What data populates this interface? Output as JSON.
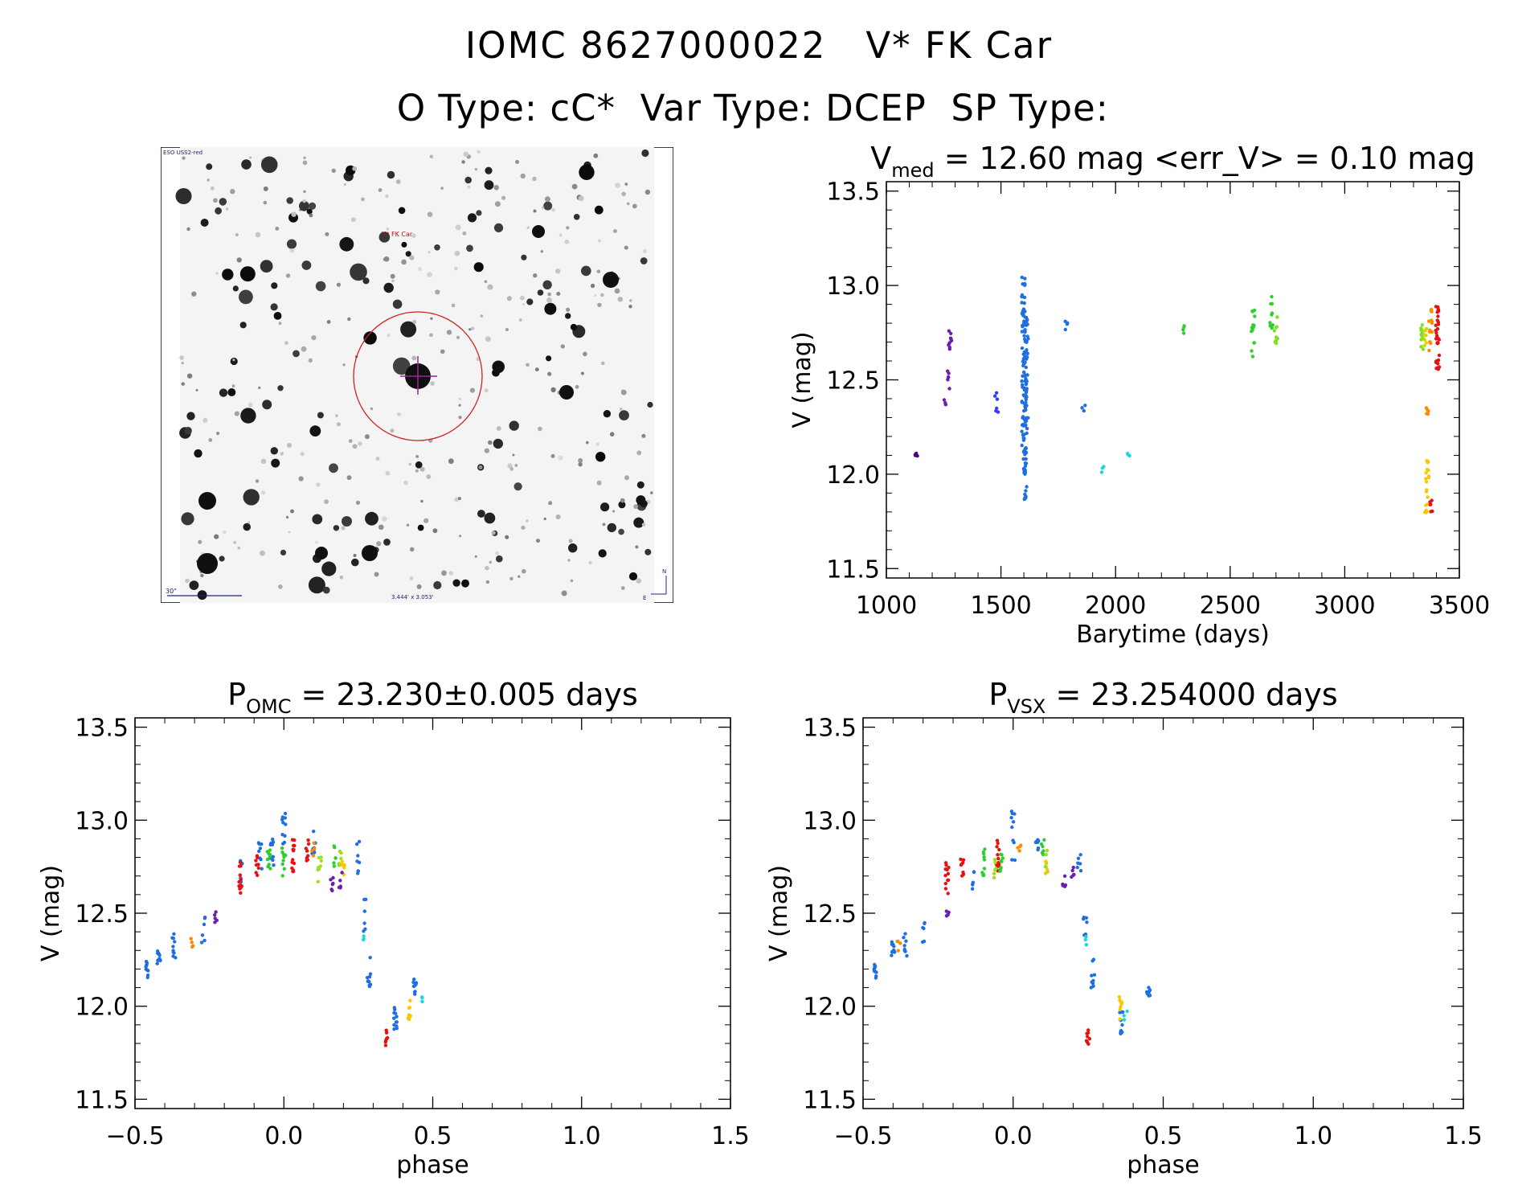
{
  "header": {
    "line1": "IOMC 8627000022   V* FK Car",
    "line2": "O Type: cC*  Var Type: DCEP  SP Type: "
  },
  "finder": {
    "survey_label": "ESO USS2-red",
    "target_label": "V* FK Car",
    "scale_label": "30\"",
    "field_label": "3.444' x 3.053'",
    "north_label": "N",
    "east_label": "E",
    "colors": {
      "circle": "#cc2222",
      "cross": "#a020a0",
      "annotation": "#1a237e",
      "target_text": "#b01010"
    }
  },
  "chart_data": [
    {
      "id": "lightcurve",
      "type": "scatter",
      "title_main": "V",
      "title_sub": "med",
      "title_rest": " = 12.60 mag <err_V> = 0.10 mag",
      "xlabel": "Barytime (days)",
      "ylabel": "V (mag)",
      "xlim": [
        1000,
        3500
      ],
      "ylim": [
        13.55,
        11.45
      ],
      "xticks": [
        1000,
        1500,
        2000,
        2500,
        3000,
        3500
      ],
      "xtick_labels": [
        "1000",
        "1500",
        "2000",
        "2500",
        "3000",
        "3500"
      ],
      "yticks": [
        11.5,
        12.0,
        12.5,
        13.0,
        13.5
      ],
      "ytick_labels": [
        "11.5",
        "12.0",
        "12.5",
        "13.0",
        "13.5"
      ],
      "series": [
        {
          "name": "s1",
          "color": "#4b0082",
          "clumps": [
            [
              1130,
              12.08,
              12.12,
              4
            ]
          ]
        },
        {
          "name": "s2",
          "color": "#6a1fb0",
          "clumps": [
            [
              1255,
              12.36,
              12.4,
              3
            ],
            [
              1272,
              12.44,
              12.55,
              6
            ],
            [
              1278,
              12.62,
              12.78,
              10
            ]
          ]
        },
        {
          "name": "s3",
          "color": "#3a3aff",
          "clumps": [
            [
              1480,
              12.32,
              12.44,
              6
            ]
          ]
        },
        {
          "name": "s4",
          "color": "#1f6fe0",
          "clumps": [
            [
              1598,
              12.15,
              13.05,
              60
            ],
            [
              1605,
              11.85,
              12.85,
              60
            ],
            [
              1612,
              12.2,
              12.85,
              30
            ],
            [
              1785,
              12.75,
              12.82,
              4
            ],
            [
              1860,
              12.32,
              12.38,
              3
            ]
          ]
        },
        {
          "name": "s5",
          "color": "#19d8d8",
          "clumps": [
            [
              1945,
              12.01,
              12.05,
              3
            ],
            [
              2060,
              12.07,
              12.11,
              3
            ]
          ]
        },
        {
          "name": "s6",
          "color": "#2fce2f",
          "clumps": [
            [
              2300,
              12.74,
              12.8,
              4
            ],
            [
              2600,
              12.62,
              12.9,
              14
            ],
            [
              2680,
              12.72,
              12.95,
              10
            ]
          ]
        },
        {
          "name": "s7",
          "color": "#7ee020",
          "clumps": [
            [
              2700,
              12.68,
              12.86,
              10
            ],
            [
              3340,
              12.65,
              12.8,
              12
            ]
          ]
        },
        {
          "name": "s8",
          "color": "#d8d800",
          "clumps": [
            [
              3350,
              12.68,
              12.78,
              8
            ]
          ]
        },
        {
          "name": "s9",
          "color": "#f5c800",
          "clumps": [
            [
              3355,
              11.78,
              11.88,
              8
            ],
            [
              3360,
              11.9,
              12.08,
              12
            ]
          ]
        },
        {
          "name": "s10",
          "color": "#ff8c00",
          "clumps": [
            [
              3362,
              12.28,
              12.38,
              6
            ],
            [
              3375,
              12.65,
              12.88,
              14
            ]
          ]
        },
        {
          "name": "s11",
          "color": "#e81010",
          "clumps": [
            [
              3378,
              11.78,
              11.88,
              6
            ],
            [
              3405,
              12.55,
              12.92,
              30
            ]
          ]
        }
      ]
    },
    {
      "id": "phase_omc",
      "type": "scatter",
      "title_main": "P",
      "title_sub": "OMC",
      "title_rest": " = 23.230±0.005 days",
      "xlabel": "phase",
      "ylabel": "V (mag)",
      "xlim": [
        -0.5,
        1.5
      ],
      "ylim": [
        13.55,
        11.45
      ],
      "xticks": [
        -0.5,
        0.0,
        0.5,
        1.0,
        1.5
      ],
      "xtick_labels": [
        "−0.5",
        "0.0",
        "0.5",
        "1.0",
        "1.5"
      ],
      "yticks": [
        11.5,
        12.0,
        12.5,
        13.0,
        13.5
      ],
      "ytick_labels": [
        "11.5",
        "12.0",
        "12.5",
        "13.0",
        "13.5"
      ],
      "series": [
        {
          "name": "p-blue",
          "color": "#1f6fe0",
          "clumps": [
            [
              -0.46,
              12.14,
              12.26,
              10
            ],
            [
              -0.42,
              12.18,
              12.3,
              10
            ],
            [
              -0.37,
              12.25,
              12.4,
              10
            ],
            [
              -0.27,
              12.33,
              12.48,
              6
            ],
            [
              -0.14,
              12.65,
              12.8,
              6
            ],
            [
              -0.08,
              12.72,
              12.88,
              8
            ],
            [
              -0.04,
              12.7,
              12.95,
              10
            ],
            [
              0.0,
              12.75,
              13.05,
              10
            ],
            [
              0.1,
              12.82,
              12.97,
              8
            ],
            [
              0.25,
              12.7,
              12.92,
              8
            ],
            [
              0.27,
              12.4,
              12.62,
              6
            ],
            [
              0.285,
              12.1,
              12.3,
              10
            ],
            [
              0.375,
              11.85,
              12.0,
              12
            ],
            [
              0.44,
              12.05,
              12.15,
              10
            ]
          ]
        },
        {
          "name": "p-red",
          "color": "#e81010",
          "clumps": [
            [
              -0.145,
              12.6,
              12.8,
              12
            ],
            [
              -0.09,
              12.68,
              12.82,
              8
            ],
            [
              0.03,
              12.72,
              12.9,
              14
            ],
            [
              0.08,
              12.75,
              12.9,
              8
            ],
            [
              0.345,
              11.78,
              11.88,
              8
            ]
          ]
        },
        {
          "name": "p-green",
          "color": "#2fce2f",
          "clumps": [
            [
              -0.05,
              12.72,
              12.85,
              10
            ],
            [
              0.0,
              12.7,
              12.85,
              10
            ],
            [
              0.17,
              12.75,
              12.92,
              6
            ]
          ]
        },
        {
          "name": "p-lime",
          "color": "#9be020",
          "clumps": [
            [
              0.12,
              12.65,
              12.82,
              8
            ],
            [
              0.19,
              12.72,
              12.85,
              6
            ]
          ]
        },
        {
          "name": "p-orange",
          "color": "#ff8c00",
          "clumps": [
            [
              -0.31,
              12.3,
              12.38,
              4
            ],
            [
              0.1,
              12.8,
              12.88,
              4
            ]
          ]
        },
        {
          "name": "p-yellow",
          "color": "#f5c800",
          "clumps": [
            [
              0.42,
              11.92,
              12.05,
              8
            ],
            [
              0.2,
              12.7,
              12.8,
              6
            ]
          ]
        },
        {
          "name": "p-cyan",
          "color": "#19d8d8",
          "clumps": [
            [
              0.27,
              12.33,
              12.38,
              3
            ],
            [
              0.47,
              12.0,
              12.06,
              3
            ]
          ]
        },
        {
          "name": "p-purple",
          "color": "#6a1fb0",
          "clumps": [
            [
              -0.23,
              12.45,
              12.52,
              5
            ],
            [
              0.16,
              12.6,
              12.7,
              6
            ],
            [
              0.19,
              12.62,
              12.72,
              5
            ]
          ]
        }
      ]
    },
    {
      "id": "phase_vsx",
      "type": "scatter",
      "title_main": "P",
      "title_sub": "VSX",
      "title_rest": " = 23.254000 days",
      "xlabel": "phase",
      "ylabel": "V (mag)",
      "xlim": [
        -0.5,
        1.5
      ],
      "ylim": [
        13.55,
        11.45
      ],
      "xticks": [
        -0.5,
        0.0,
        0.5,
        1.0,
        1.5
      ],
      "xtick_labels": [
        "−0.5",
        "0.0",
        "0.5",
        "1.0",
        "1.5"
      ],
      "yticks": [
        11.5,
        12.0,
        12.5,
        13.0,
        13.5
      ],
      "ytick_labels": [
        "11.5",
        "12.0",
        "12.5",
        "13.0",
        "13.5"
      ],
      "series": [
        {
          "name": "v-blue",
          "color": "#1f6fe0",
          "clumps": [
            [
              -0.46,
              12.14,
              12.24,
              10
            ],
            [
              -0.4,
              12.22,
              12.35,
              10
            ],
            [
              -0.36,
              12.26,
              12.4,
              8
            ],
            [
              -0.3,
              12.33,
              12.45,
              6
            ],
            [
              -0.13,
              12.62,
              12.75,
              6
            ],
            [
              0.0,
              12.75,
              13.05,
              10
            ],
            [
              0.08,
              12.8,
              12.92,
              8
            ],
            [
              0.22,
              12.7,
              12.82,
              6
            ],
            [
              0.24,
              12.3,
              12.5,
              6
            ],
            [
              0.265,
              12.1,
              12.28,
              10
            ],
            [
              0.36,
              11.85,
              12.0,
              10
            ],
            [
              0.45,
              12.05,
              12.15,
              10
            ]
          ]
        },
        {
          "name": "v-red",
          "color": "#e81010",
          "clumps": [
            [
              -0.22,
              12.6,
              12.78,
              12
            ],
            [
              -0.17,
              12.68,
              12.82,
              8
            ],
            [
              -0.05,
              12.72,
              12.9,
              14
            ],
            [
              0.25,
              11.78,
              11.88,
              8
            ]
          ]
        },
        {
          "name": "v-green",
          "color": "#2fce2f",
          "clumps": [
            [
              -0.1,
              12.7,
              12.85,
              10
            ],
            [
              -0.04,
              12.7,
              12.82,
              8
            ],
            [
              0.1,
              12.78,
              12.92,
              6
            ]
          ]
        },
        {
          "name": "v-lime",
          "color": "#9be020",
          "clumps": [
            [
              -0.06,
              12.68,
              12.8,
              6
            ],
            [
              0.11,
              12.7,
              12.85,
              6
            ]
          ]
        },
        {
          "name": "v-orange",
          "color": "#ff8c00",
          "clumps": [
            [
              -0.38,
              12.28,
              12.36,
              4
            ],
            [
              0.02,
              12.82,
              12.88,
              4
            ]
          ]
        },
        {
          "name": "v-yellow",
          "color": "#f5c800",
          "clumps": [
            [
              0.36,
              11.93,
              12.05,
              8
            ],
            [
              0.11,
              12.7,
              12.82,
              5
            ]
          ]
        },
        {
          "name": "v-cyan",
          "color": "#19d8d8",
          "clumps": [
            [
              0.245,
              12.33,
              12.38,
              3
            ],
            [
              0.375,
              11.92,
              11.98,
              3
            ]
          ]
        },
        {
          "name": "v-purple",
          "color": "#6a1fb0",
          "clumps": [
            [
              -0.22,
              12.45,
              12.52,
              5
            ],
            [
              0.17,
              12.62,
              12.72,
              6
            ],
            [
              0.2,
              12.65,
              12.75,
              5
            ]
          ]
        }
      ]
    }
  ]
}
